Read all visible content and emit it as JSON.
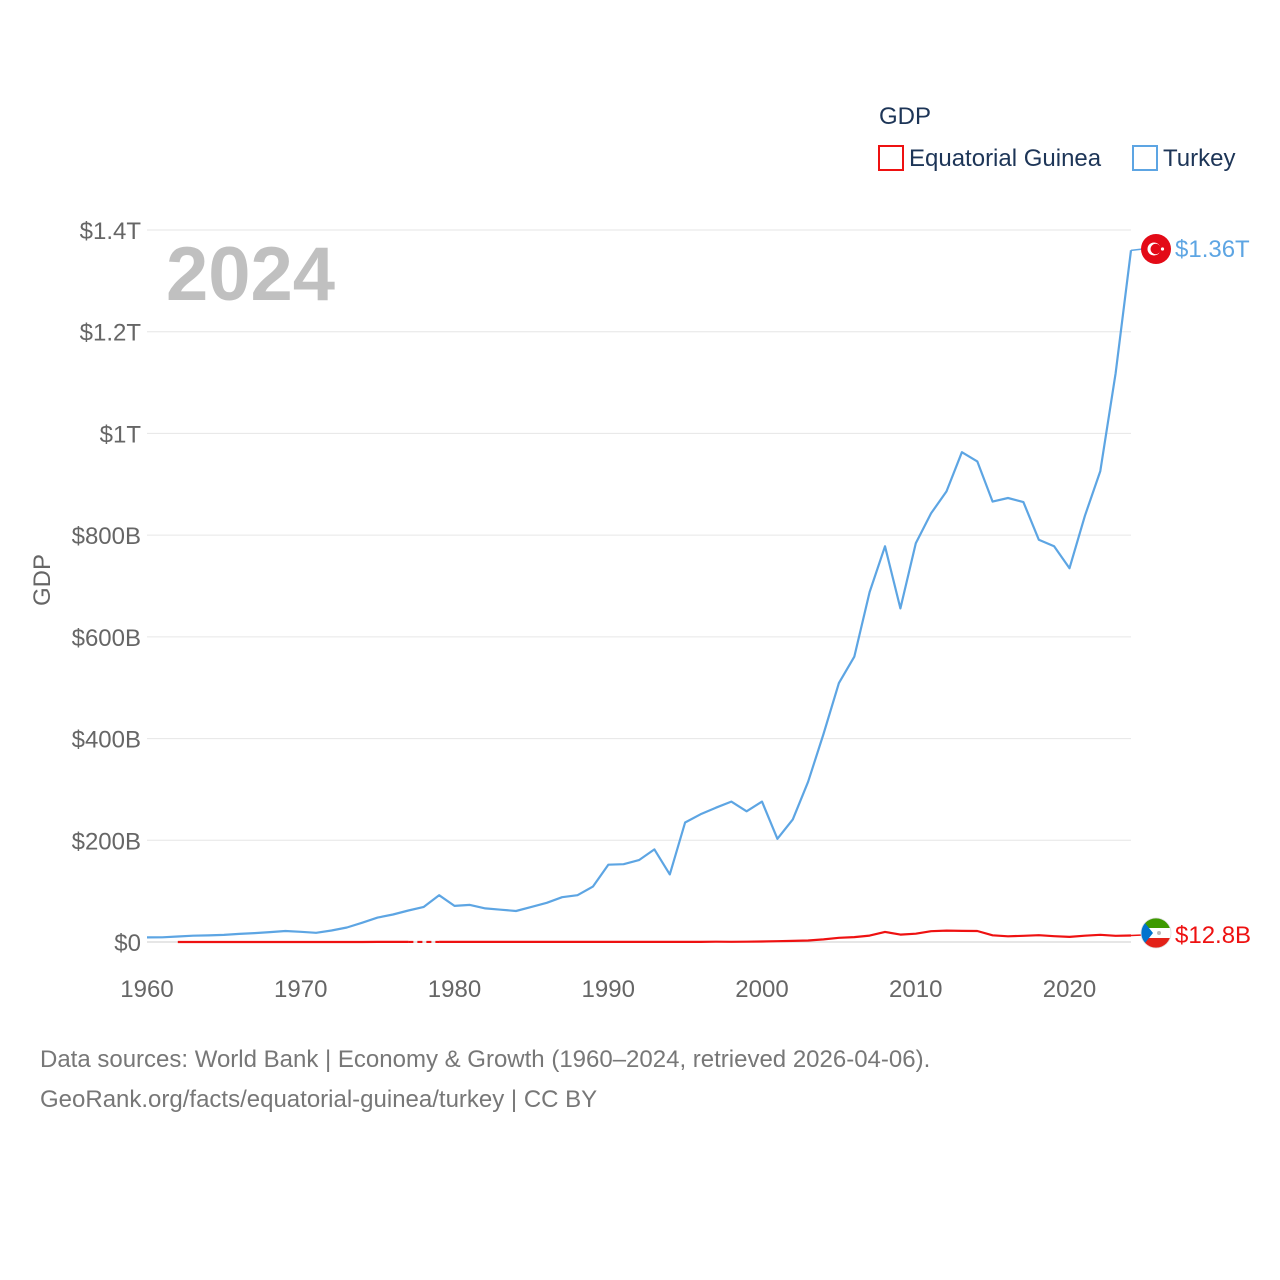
{
  "chart_data": {
    "type": "line",
    "title": "GDP",
    "year_label": "2024",
    "ylabel": "GDP",
    "xlabel": "",
    "xlim": [
      1960,
      2024
    ],
    "ylim": [
      0,
      1400000000000.0
    ],
    "x_ticks": [
      1960,
      1970,
      1980,
      1990,
      2000,
      2010,
      2020
    ],
    "y_ticks": [
      {
        "value": 0,
        "label": "$0"
      },
      {
        "value": 200000000000.0,
        "label": "$200B"
      },
      {
        "value": 400000000000.0,
        "label": "$400B"
      },
      {
        "value": 600000000000.0,
        "label": "$600B"
      },
      {
        "value": 800000000000.0,
        "label": "$800B"
      },
      {
        "value": 1000000000000.0,
        "label": "$1T"
      },
      {
        "value": 1200000000000.0,
        "label": "$1.2T"
      },
      {
        "value": 1400000000000.0,
        "label": "$1.4T"
      }
    ],
    "legend_title": "GDP",
    "series": [
      {
        "name": "Equatorial Guinea",
        "color": "#ee1111",
        "end_label": "$12.8B",
        "flag_icon": "equatorial-guinea-flag-icon",
        "points": [
          [
            1962,
            30000000.0
          ],
          [
            1963,
            30000000.0
          ],
          [
            1964,
            30000000.0
          ],
          [
            1965,
            30000000.0
          ],
          [
            1966,
            30000000.0
          ],
          [
            1967,
            30000000.0
          ],
          [
            1968,
            30000000.0
          ],
          [
            1969,
            30000000.0
          ],
          [
            1970,
            40000000.0
          ],
          [
            1971,
            40000000.0
          ],
          [
            1972,
            50000000.0
          ],
          [
            1973,
            60000000.0
          ],
          [
            1974,
            80000000.0
          ],
          [
            1975,
            100000000.0
          ],
          [
            1976,
            100000000.0
          ],
          [
            1977,
            100000000.0
          ],
          [
            1978,
            null
          ],
          [
            1979,
            100000000.0
          ],
          [
            1980,
            100000000.0
          ],
          [
            1981,
            100000000.0
          ],
          [
            1982,
            100000000.0
          ],
          [
            1983,
            100000000.0
          ],
          [
            1984,
            100000000.0
          ],
          [
            1985,
            100000000.0
          ],
          [
            1986,
            120000000.0
          ],
          [
            1987,
            140000000.0
          ],
          [
            1988,
            150000000.0
          ],
          [
            1989,
            140000000.0
          ],
          [
            1990,
            150000000.0
          ],
          [
            1991,
            150000000.0
          ],
          [
            1992,
            170000000.0
          ],
          [
            1993,
            160000000.0
          ],
          [
            1994,
            130000000.0
          ],
          [
            1995,
            150000000.0
          ],
          [
            1996,
            280000000.0
          ],
          [
            1997,
            500000000.0
          ],
          [
            1998,
            370000000.0
          ],
          [
            1999,
            620000000.0
          ],
          [
            2000,
            1050000000.0
          ],
          [
            2001,
            1660000000.0
          ],
          [
            2002,
            2200000000.0
          ],
          [
            2003,
            2900000000.0
          ],
          [
            2004,
            5100000000.0
          ],
          [
            2005,
            8200000000.0
          ],
          [
            2006,
            9600000000.0
          ],
          [
            2007,
            12600000000.0
          ],
          [
            2008,
            19800000000.0
          ],
          [
            2009,
            14600000000.0
          ],
          [
            2010,
            16300000000.0
          ],
          [
            2011,
            21300000000.0
          ],
          [
            2012,
            22400000000.0
          ],
          [
            2013,
            21900000000.0
          ],
          [
            2014,
            21700000000.0
          ],
          [
            2015,
            13200000000.0
          ],
          [
            2016,
            11200000000.0
          ],
          [
            2017,
            12200000000.0
          ],
          [
            2018,
            13300000000.0
          ],
          [
            2019,
            11400000000.0
          ],
          [
            2020,
            10100000000.0
          ],
          [
            2021,
            12300000000.0
          ],
          [
            2022,
            14100000000.0
          ],
          [
            2023,
            12100000000.0
          ],
          [
            2024,
            12800000000.0
          ]
        ]
      },
      {
        "name": "Turkey",
        "color": "#5da5e3",
        "end_label": "$1.36T",
        "flag_icon": "turkey-flag-icon",
        "points": [
          [
            1960,
            9000000000.0
          ],
          [
            1961,
            9300000000.0
          ],
          [
            1962,
            10900000000.0
          ],
          [
            1963,
            12300000000.0
          ],
          [
            1964,
            13000000000.0
          ],
          [
            1965,
            13900000000.0
          ],
          [
            1966,
            16000000000.0
          ],
          [
            1967,
            17500000000.0
          ],
          [
            1968,
            19500000000.0
          ],
          [
            1969,
            21600000000.0
          ],
          [
            1970,
            20000000000.0
          ],
          [
            1971,
            18000000000.0
          ],
          [
            1972,
            22600000000.0
          ],
          [
            1973,
            28500000000.0
          ],
          [
            1974,
            38000000000.0
          ],
          [
            1975,
            48000000000.0
          ],
          [
            1976,
            54000000000.0
          ],
          [
            1977,
            62000000000.0
          ],
          [
            1978,
            69000000000.0
          ],
          [
            1979,
            92000000000.0
          ],
          [
            1980,
            71000000000.0
          ],
          [
            1981,
            73000000000.0
          ],
          [
            1982,
            66000000000.0
          ],
          [
            1983,
            63500000000.0
          ],
          [
            1984,
            61000000000.0
          ],
          [
            1985,
            69000000000.0
          ],
          [
            1986,
            77000000000.0
          ],
          [
            1987,
            88000000000.0
          ],
          [
            1988,
            92000000000.0
          ],
          [
            1989,
            109000000000.0
          ],
          [
            1990,
            152000000000.0
          ],
          [
            1991,
            153000000000.0
          ],
          [
            1992,
            161000000000.0
          ],
          [
            1993,
            182000000000.0
          ],
          [
            1994,
            133000000000.0
          ],
          [
            1995,
            235000000000.0
          ],
          [
            1996,
            251000000000.0
          ],
          [
            1997,
            264000000000.0
          ],
          [
            1998,
            276000000000.0
          ],
          [
            1999,
            257000000000.0
          ],
          [
            2000,
            276000000000.0
          ],
          [
            2001,
            203000000000.0
          ],
          [
            2002,
            241000000000.0
          ],
          [
            2003,
            315000000000.0
          ],
          [
            2004,
            409000000000.0
          ],
          [
            2005,
            509000000000.0
          ],
          [
            2006,
            561000000000.0
          ],
          [
            2007,
            688000000000.0
          ],
          [
            2008,
            778000000000.0
          ],
          [
            2009,
            656000000000.0
          ],
          [
            2010,
            784000000000.0
          ],
          [
            2011,
            843000000000.0
          ],
          [
            2012,
            886000000000.0
          ],
          [
            2013,
            963000000000.0
          ],
          [
            2014,
            945000000000.0
          ],
          [
            2015,
            866000000000.0
          ],
          [
            2016,
            873000000000.0
          ],
          [
            2017,
            865000000000.0
          ],
          [
            2018,
            791000000000.0
          ],
          [
            2019,
            778000000000.0
          ],
          [
            2020,
            735000000000.0
          ],
          [
            2021,
            838000000000.0
          ],
          [
            2022,
            926000000000.0
          ],
          [
            2023,
            1118000000000.0
          ],
          [
            2024,
            1360000000000.0
          ]
        ]
      }
    ]
  },
  "source": {
    "line1": "Data sources: World Bank | Economy & Growth (1960–2024, retrieved 2026-04-06).",
    "line2": "GeoRank.org/facts/equatorial-guinea/turkey | CC BY"
  }
}
